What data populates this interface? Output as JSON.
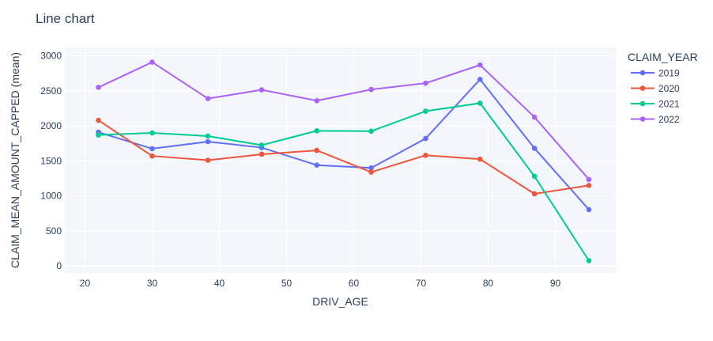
{
  "chart_data": {
    "type": "line",
    "title": "Line chart",
    "xlabel": "DRIV_AGE",
    "ylabel": "CLAIM_MEAN_AMOUNT_CAPPED (mean)",
    "xlim": [
      17,
      99
    ],
    "ylim": [
      -100,
      3120
    ],
    "xticks": [
      20,
      30,
      40,
      50,
      60,
      70,
      80,
      90
    ],
    "yticks": [
      0,
      500,
      1000,
      1500,
      2000,
      2500,
      3000
    ],
    "grid": true,
    "legend": {
      "title": "CLAIM_YEAR",
      "placement": "right"
    },
    "x": [
      22,
      30,
      38.3,
      46.3,
      54.5,
      62.6,
      70.7,
      78.8,
      86.9,
      95
    ],
    "series": [
      {
        "name": "2019",
        "color": "#636efa",
        "values": [
          1910,
          1675,
          1775,
          1690,
          1440,
          1400,
          1820,
          2665,
          1680,
          805
        ]
      },
      {
        "name": "2020",
        "color": "#ef553b",
        "values": [
          2080,
          1570,
          1510,
          1595,
          1650,
          1340,
          1580,
          1525,
          1030,
          1150
        ]
      },
      {
        "name": "2021",
        "color": "#00cc96",
        "values": [
          1870,
          1900,
          1855,
          1725,
          1930,
          1925,
          2210,
          2325,
          1280,
          75
        ]
      },
      {
        "name": "2022",
        "color": "#ab63fa",
        "values": [
          2550,
          2910,
          2390,
          2515,
          2360,
          2520,
          2610,
          2870,
          2125,
          1235
        ]
      }
    ]
  }
}
